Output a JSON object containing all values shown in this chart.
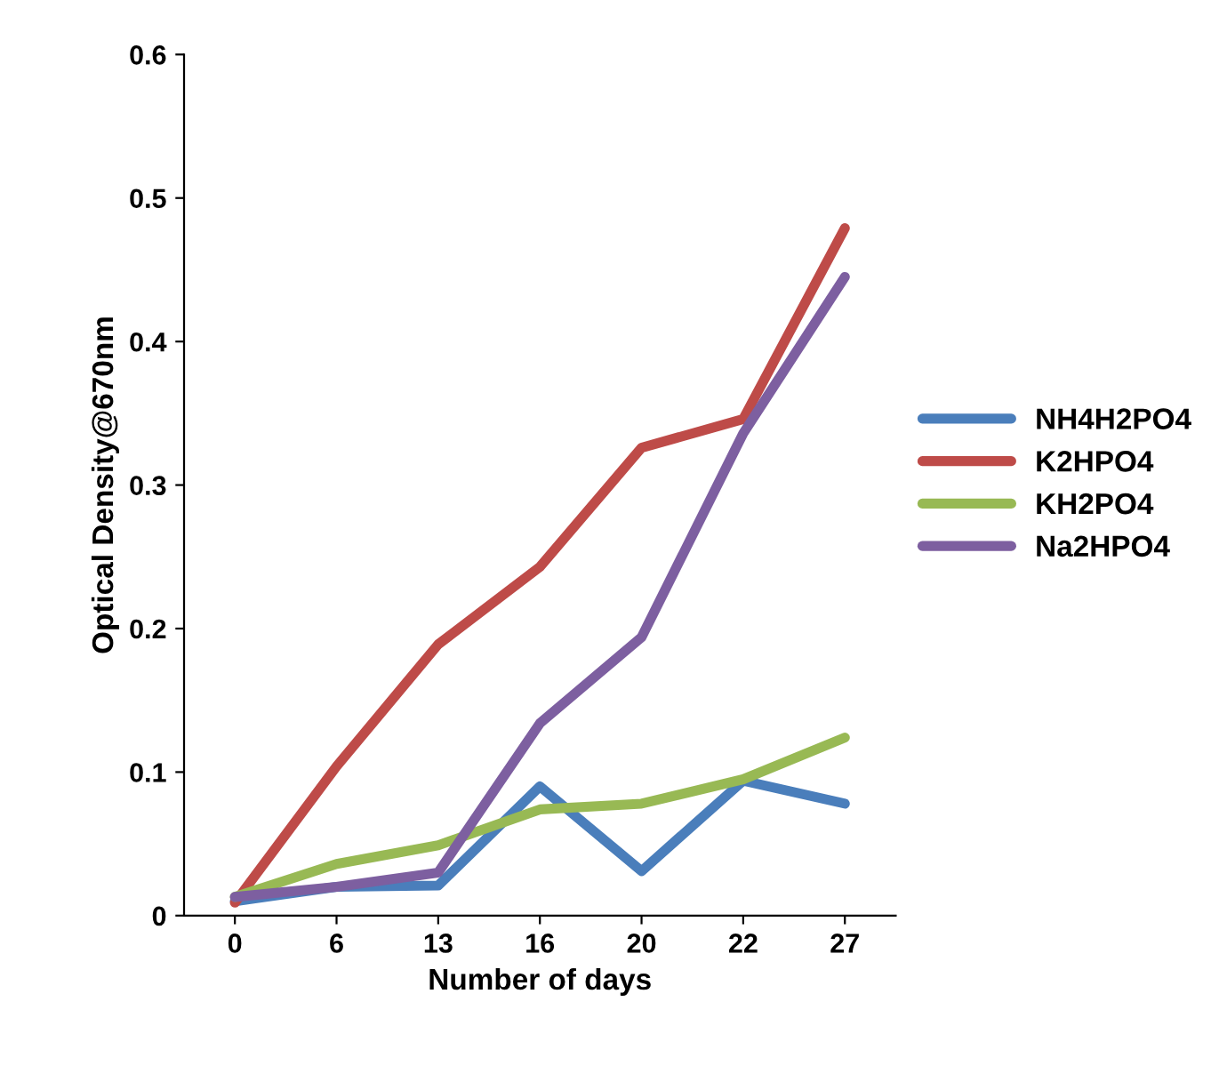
{
  "chart_data": {
    "type": "line",
    "xlabel": "Number of days",
    "ylabel": "Optical Density@670nm",
    "categories": [
      "0",
      "6",
      "13",
      "16",
      "20",
      "22",
      "27"
    ],
    "series": [
      {
        "name": "NH4H2PO4",
        "color": "#4a7ebb",
        "values": [
          0.01,
          0.02,
          0.021,
          0.09,
          0.031,
          0.094,
          0.078
        ]
      },
      {
        "name": "K2HPO4",
        "color": "#be4b48",
        "values": [
          0.009,
          0.104,
          0.189,
          0.243,
          0.326,
          0.346,
          0.479
        ]
      },
      {
        "name": "KH2PO4",
        "color": "#98b954",
        "values": [
          0.013,
          0.036,
          0.049,
          0.074,
          0.078,
          0.095,
          0.124
        ]
      },
      {
        "name": "Na2HPO4",
        "color": "#7d5fa0",
        "values": [
          0.013,
          0.02,
          0.03,
          0.134,
          0.194,
          0.336,
          0.445
        ]
      }
    ],
    "ylim": [
      0,
      0.6
    ],
    "yticks": [
      {
        "value": 0,
        "label": "0"
      },
      0.1,
      0.2,
      0.3,
      0.4,
      0.5,
      0.6
    ],
    "grid": false,
    "legend": "right",
    "marker": "none",
    "line_style": "solid"
  }
}
